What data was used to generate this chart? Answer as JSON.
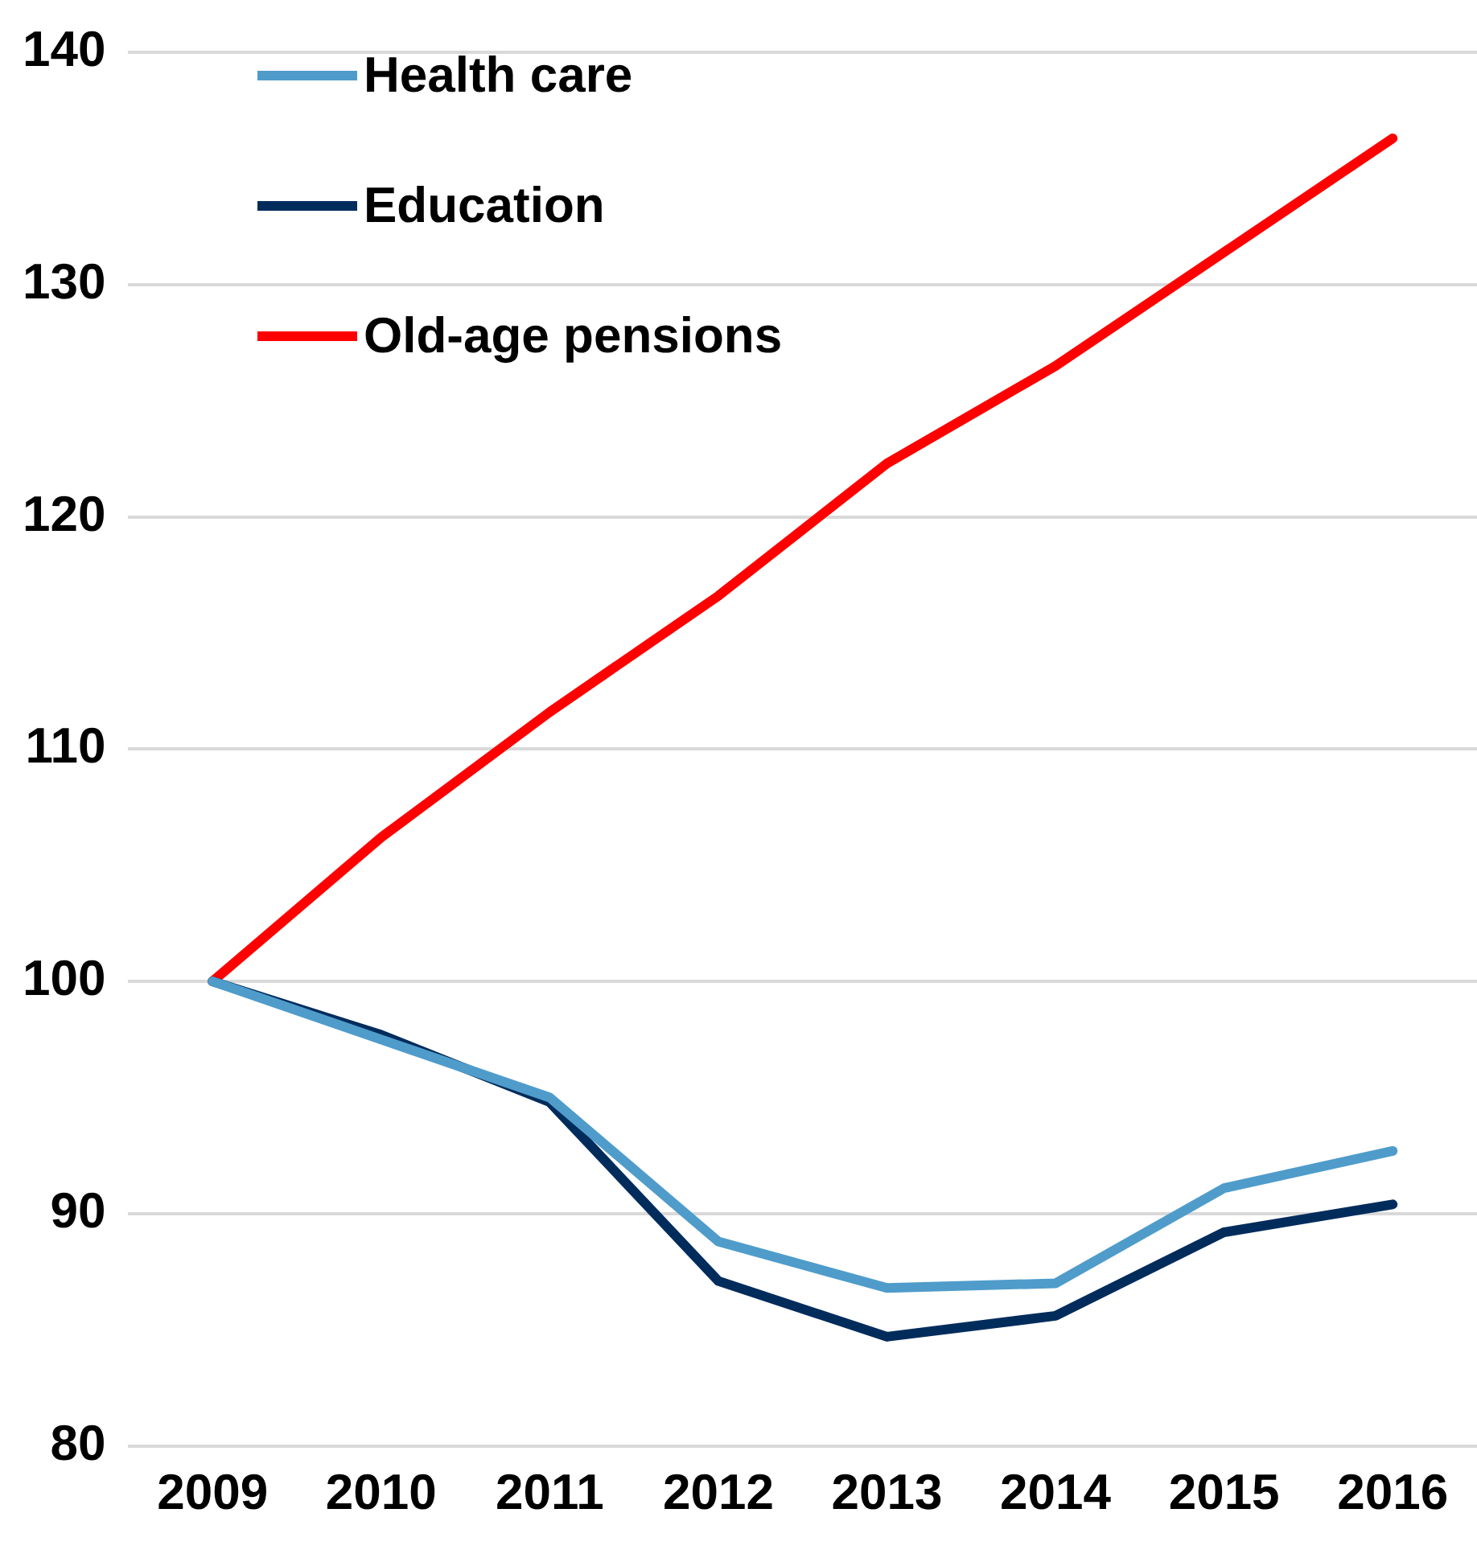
{
  "chart_data": {
    "type": "line",
    "categories": [
      "2009",
      "2010",
      "2011",
      "2012",
      "2013",
      "2014",
      "2015",
      "2016"
    ],
    "series": [
      {
        "name": "Health care",
        "color": "#4f9ccb",
        "values": [
          100,
          97.5,
          95.0,
          88.8,
          86.8,
          87.0,
          91.1,
          92.7
        ]
      },
      {
        "name": "Education",
        "color": "#002c5c",
        "values": [
          100,
          97.7,
          94.8,
          87.1,
          84.7,
          85.6,
          89.2,
          90.4
        ]
      },
      {
        "name": "Old-age pensions",
        "color": "#ff0000",
        "values": [
          100,
          106.2,
          111.6,
          116.6,
          122.3,
          126.5,
          131.4,
          136.3
        ]
      }
    ],
    "ylim": [
      80,
      140
    ],
    "yticks": [
      80,
      90,
      100,
      110,
      120,
      130,
      140
    ],
    "grid": "y",
    "legend": "top left",
    "marker": "none",
    "line_style": "solid"
  }
}
